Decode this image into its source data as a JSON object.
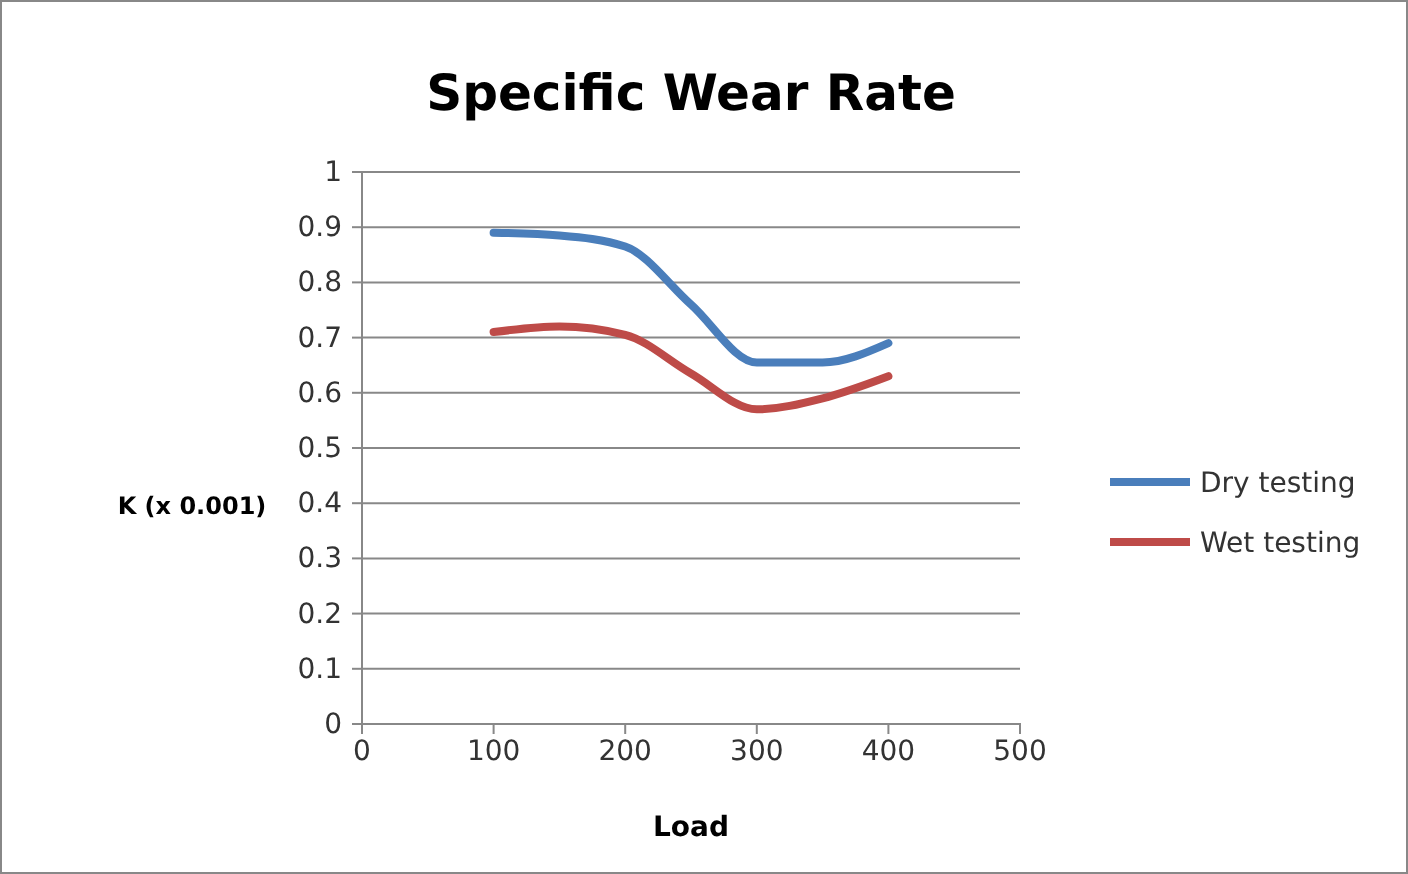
{
  "chart_data": {
    "type": "line",
    "title": "Specific Wear Rate",
    "xlabel": "Load",
    "ylabel": "K (x 0.001)",
    "x": [
      100,
      150,
      200,
      250,
      300,
      350,
      400
    ],
    "series": [
      {
        "name": "Dry testing",
        "color": "#4a7ebb",
        "values": [
          0.89,
          0.885,
          0.865,
          0.76,
          0.655,
          0.655,
          0.69
        ]
      },
      {
        "name": "Wet testing",
        "color": "#be4b48",
        "values": [
          0.71,
          0.72,
          0.705,
          0.635,
          0.57,
          0.59,
          0.63
        ]
      }
    ],
    "xlim": [
      0,
      500
    ],
    "xticks": [
      0,
      100,
      200,
      300,
      400,
      500
    ],
    "ylim": [
      0,
      1
    ],
    "yticks": [
      0,
      0.1,
      0.2,
      0.3,
      0.4,
      0.5,
      0.6,
      0.7,
      0.8,
      0.9,
      1
    ],
    "grid": "y",
    "legend": "right",
    "marker": "none",
    "line_style": "solid"
  }
}
